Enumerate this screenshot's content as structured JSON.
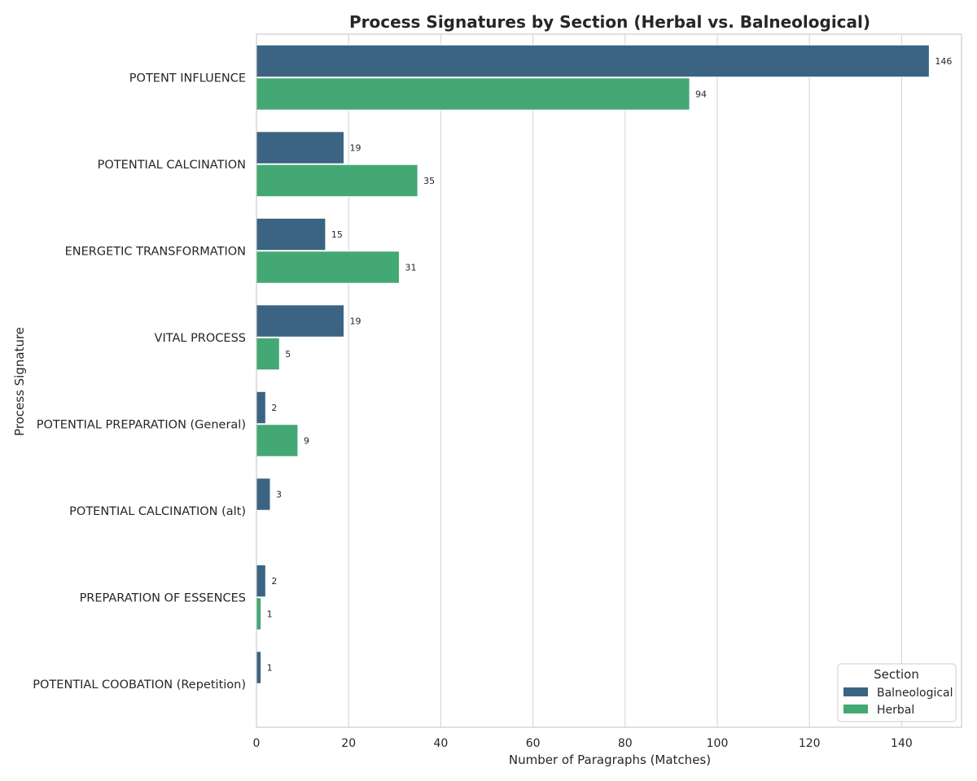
{
  "chart_data": {
    "type": "bar",
    "orientation": "horizontal",
    "title": "Process Signatures by Section (Herbal vs. Balneological)",
    "xlabel": "Number of Paragraphs (Matches)",
    "ylabel": "Process Signature",
    "xlim": [
      0,
      153
    ],
    "xticks": [
      0,
      20,
      40,
      60,
      80,
      100,
      120,
      140
    ],
    "grid": "vertical",
    "categories": [
      "POTENT INFLUENCE",
      "POTENTIAL CALCINATION",
      "ENERGETIC TRANSFORMATION",
      "VITAL PROCESS",
      "POTENTIAL PREPARATION (General)",
      "POTENTIAL CALCINATION (alt)",
      "PREPARATION OF ESSENCES",
      "POTENTIAL COOBATION (Repetition)"
    ],
    "series": [
      {
        "name": "Balneological",
        "color": "#3b6482",
        "values": [
          146,
          19,
          15,
          19,
          2,
          3,
          2,
          1
        ]
      },
      {
        "name": "Herbal",
        "color": "#44a874",
        "values": [
          94,
          35,
          31,
          5,
          9,
          null,
          1,
          null
        ]
      }
    ],
    "legend": {
      "title": "Section",
      "placement": "bottom-right"
    }
  }
}
